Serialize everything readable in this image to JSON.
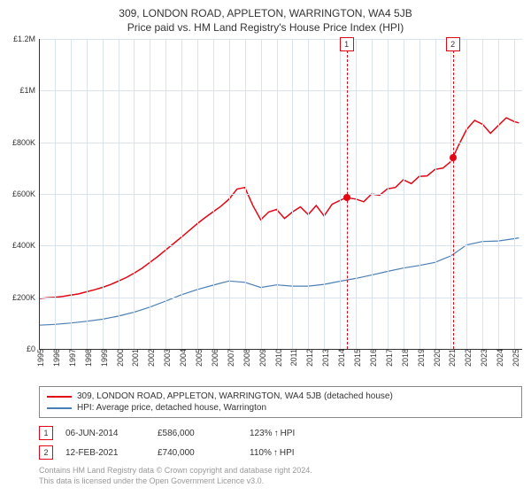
{
  "title": "309, LONDON ROAD, APPLETON, WARRINGTON, WA4 5JB",
  "subtitle": "Price paid vs. HM Land Registry's House Price Index (HPI)",
  "chart": {
    "type": "line",
    "background_color": "#ffffff",
    "grid_color": "#d9e3ed",
    "axis_color": "#333333",
    "ylim": [
      0,
      1200000
    ],
    "ytick_step": 200000,
    "ytick_labels": [
      "£0",
      "£200K",
      "£400K",
      "£600K",
      "£800K",
      "£1M",
      "£1.2M"
    ],
    "xlim": [
      1995,
      2025.5
    ],
    "xtick_step": 1,
    "xtick_labels": [
      "1995",
      "1996",
      "1997",
      "1998",
      "1999",
      "2000",
      "2001",
      "2002",
      "2003",
      "2004",
      "2005",
      "2006",
      "2007",
      "2008",
      "2009",
      "2010",
      "2011",
      "2012",
      "2013",
      "2014",
      "2015",
      "2016",
      "2017",
      "2018",
      "2019",
      "2020",
      "2021",
      "2022",
      "2023",
      "2024",
      "2025"
    ],
    "series": [
      {
        "name": "price_paid",
        "label": "309, LONDON ROAD, APPLETON, WARRINGTON, WA4 5JB (detached house)",
        "color": "#e30613",
        "line_width": 1.5,
        "data": [
          [
            1995,
            195000
          ],
          [
            1995.5,
            198000
          ],
          [
            1996,
            200000
          ],
          [
            1996.5,
            203000
          ],
          [
            1997,
            208000
          ],
          [
            1997.5,
            213000
          ],
          [
            1998,
            221000
          ],
          [
            1998.5,
            229000
          ],
          [
            1999,
            238000
          ],
          [
            1999.5,
            249000
          ],
          [
            2000,
            262000
          ],
          [
            2000.5,
            276000
          ],
          [
            2001,
            293000
          ],
          [
            2001.5,
            312000
          ],
          [
            2002,
            335000
          ],
          [
            2002.5,
            358000
          ],
          [
            2003,
            383000
          ],
          [
            2003.5,
            408000
          ],
          [
            2004,
            433000
          ],
          [
            2004.5,
            459000
          ],
          [
            2005,
            485000
          ],
          [
            2005.5,
            509000
          ],
          [
            2006,
            531000
          ],
          [
            2006.5,
            553000
          ],
          [
            2007,
            580000
          ],
          [
            2007.5,
            619000
          ],
          [
            2008,
            625000
          ],
          [
            2008.5,
            555000
          ],
          [
            2009,
            500000
          ],
          [
            2009.5,
            530000
          ],
          [
            2010,
            540000
          ],
          [
            2010.5,
            505000
          ],
          [
            2011,
            530000
          ],
          [
            2011.5,
            550000
          ],
          [
            2012,
            520000
          ],
          [
            2012.5,
            555000
          ],
          [
            2013,
            515000
          ],
          [
            2013.5,
            560000
          ],
          [
            2014,
            575000
          ],
          [
            2014.42,
            586000
          ],
          [
            2015,
            580000
          ],
          [
            2015.5,
            570000
          ],
          [
            2016,
            600000
          ],
          [
            2016.5,
            595000
          ],
          [
            2017,
            620000
          ],
          [
            2017.5,
            625000
          ],
          [
            2018,
            655000
          ],
          [
            2018.5,
            640000
          ],
          [
            2019,
            668000
          ],
          [
            2019.5,
            670000
          ],
          [
            2020,
            695000
          ],
          [
            2020.5,
            700000
          ],
          [
            2021,
            725000
          ],
          [
            2021.12,
            740000
          ],
          [
            2021.5,
            790000
          ],
          [
            2022,
            850000
          ],
          [
            2022.5,
            885000
          ],
          [
            2023,
            870000
          ],
          [
            2023.5,
            835000
          ],
          [
            2024,
            865000
          ],
          [
            2024.5,
            895000
          ],
          [
            2025,
            880000
          ],
          [
            2025.3,
            875000
          ]
        ]
      },
      {
        "name": "hpi",
        "label": "HPI: Average price, detached house, Warrington",
        "color": "#4a7fb5",
        "line_width": 1.2,
        "data": [
          [
            1995,
            92000
          ],
          [
            1996,
            95000
          ],
          [
            1997,
            100000
          ],
          [
            1998,
            107000
          ],
          [
            1999,
            115000
          ],
          [
            2000,
            127000
          ],
          [
            2001,
            142000
          ],
          [
            2002,
            162000
          ],
          [
            2003,
            185000
          ],
          [
            2004,
            210000
          ],
          [
            2005,
            230000
          ],
          [
            2006,
            247000
          ],
          [
            2007,
            263000
          ],
          [
            2008,
            258000
          ],
          [
            2009,
            238000
          ],
          [
            2010,
            248000
          ],
          [
            2011,
            243000
          ],
          [
            2012,
            243000
          ],
          [
            2013,
            250000
          ],
          [
            2014,
            262000
          ],
          [
            2015,
            273000
          ],
          [
            2016,
            286000
          ],
          [
            2017,
            300000
          ],
          [
            2018,
            313000
          ],
          [
            2019,
            323000
          ],
          [
            2020,
            335000
          ],
          [
            2021,
            360000
          ],
          [
            2022,
            403000
          ],
          [
            2023,
            416000
          ],
          [
            2024,
            418000
          ],
          [
            2025,
            427000
          ],
          [
            2025.3,
            430000
          ]
        ]
      }
    ],
    "markers": [
      {
        "id": "1",
        "x": 2014.42,
        "y": 586000,
        "color": "#e30613"
      },
      {
        "id": "2",
        "x": 2021.12,
        "y": 740000,
        "color": "#e30613"
      }
    ],
    "marker_line_color": "#e30613",
    "marker_badge_border": "#e30613",
    "point_color": "#e30613"
  },
  "legend": {
    "border_color": "#888888",
    "items": [
      {
        "color": "#e30613",
        "label": "309, LONDON ROAD, APPLETON, WARRINGTON, WA4 5JB (detached house)"
      },
      {
        "color": "#4a7fb5",
        "label": "HPI: Average price, detached house, Warrington"
      }
    ]
  },
  "data_table": {
    "badge_border": "#e30613",
    "rows": [
      {
        "id": "1",
        "date": "06-JUN-2014",
        "price": "£586,000",
        "pct": "123%",
        "arrow": "↑",
        "suffix": "HPI"
      },
      {
        "id": "2",
        "date": "12-FEB-2021",
        "price": "£740,000",
        "pct": "110%",
        "arrow": "↑",
        "suffix": "HPI"
      }
    ]
  },
  "footer": {
    "line1": "Contains HM Land Registry data © Crown copyright and database right 2024.",
    "line2": "This data is licensed under the Open Government Licence v3.0."
  }
}
